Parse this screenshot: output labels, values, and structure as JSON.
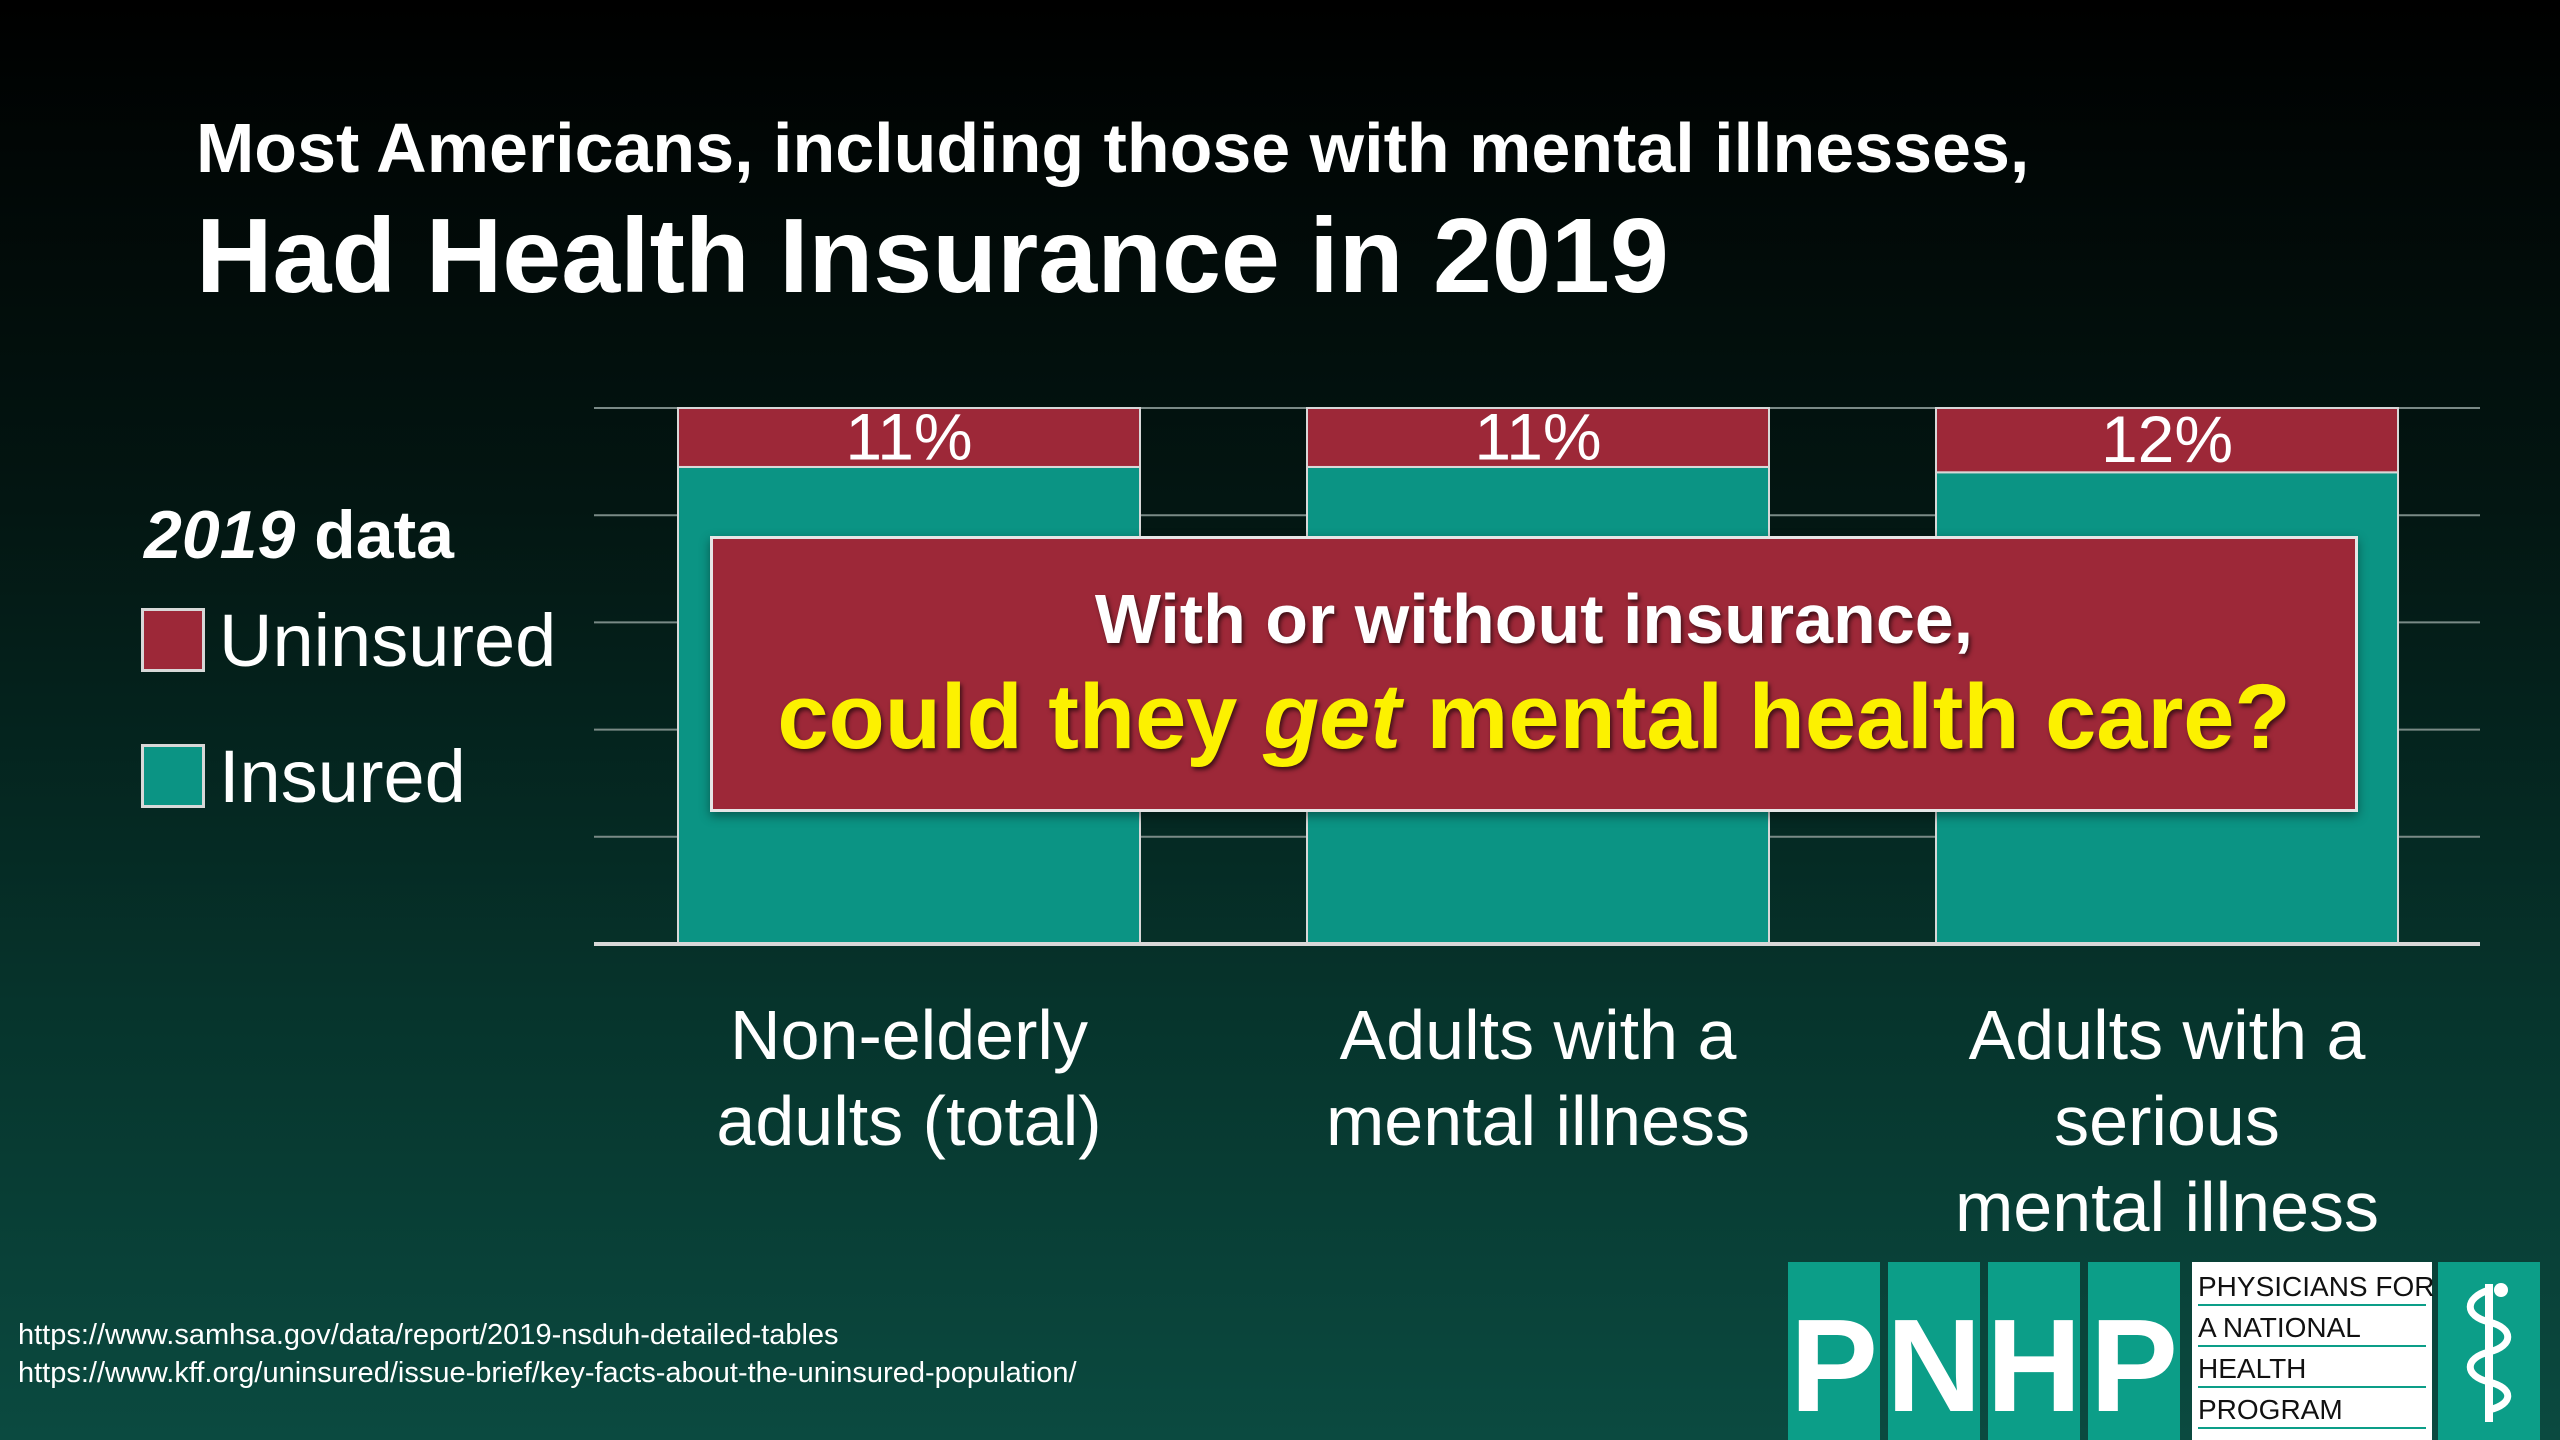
{
  "header": {
    "title_line1": "Most Americans, including those with mental illnesses,",
    "title_line2": "Had Health Insurance in 2019"
  },
  "legend": {
    "title_year": "2019",
    "title_rest": " data",
    "items": [
      {
        "label": "Uninsured",
        "color": "#9d2838"
      },
      {
        "label": "Insured",
        "color": "#0b9484"
      }
    ]
  },
  "chart_data": {
    "type": "bar",
    "stacked": true,
    "categories": [
      [
        "Non-elderly",
        "adults (total)"
      ],
      [
        "Adults with a",
        "mental illness"
      ],
      [
        "Adults with a",
        "serious",
        "mental illness"
      ]
    ],
    "series": [
      {
        "name": "Insured",
        "values": [
          89,
          89,
          88
        ],
        "color": "#0b9484"
      },
      {
        "name": "Uninsured",
        "values": [
          11,
          11,
          12
        ],
        "color": "#9d2838"
      }
    ],
    "data_labels": [
      "11%",
      "11%",
      "12%"
    ],
    "ylim": [
      0,
      100
    ],
    "grid": true,
    "legend": "left"
  },
  "callout": {
    "line1": "With or without insurance,",
    "line2_pre": "could they ",
    "line2_em": "get",
    "line2_post": " mental health care?"
  },
  "sources": [
    "https://www.samhsa.gov/data/report/2019-nsduh-detailed-tables",
    "https://www.kff.org/uninsured/issue-brief/key-facts-about-the-uninsured-population/"
  ],
  "logo": {
    "letters": [
      "P",
      "N",
      "H",
      "P"
    ],
    "text_lines": [
      "PHYSICIANS FOR",
      "A NATIONAL",
      "HEALTH",
      "PROGRAM"
    ],
    "emblem_icon": "caduceus-icon"
  }
}
